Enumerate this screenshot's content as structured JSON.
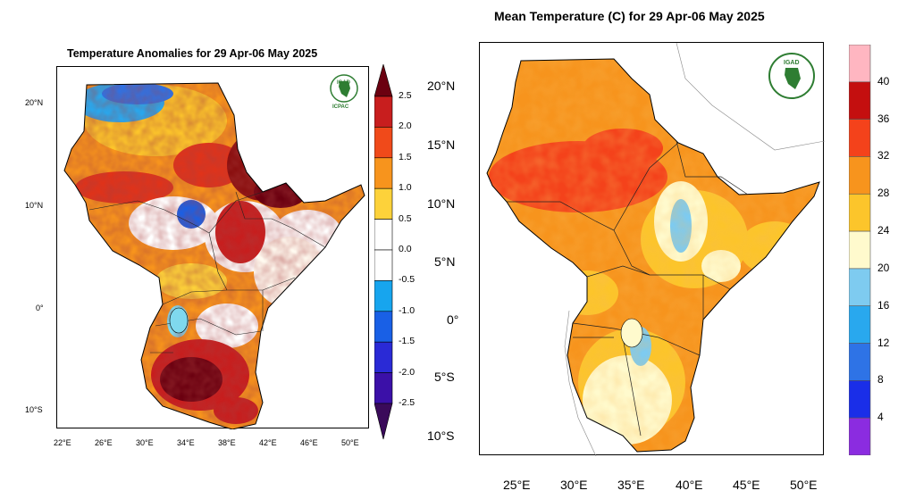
{
  "left_map": {
    "title": "Temperature Anomalies for 29 Apr-06 May 2025",
    "lat_labels": [
      "20°N",
      "10°N",
      "0°",
      "10°S"
    ],
    "lon_labels": [
      "22°E",
      "26°E",
      "30°E",
      "34°E",
      "38°E",
      "42°E",
      "46°E",
      "50°E"
    ],
    "logo_top": "IGAD",
    "logo_bottom": "ICPAC",
    "colorbar": {
      "labels": [
        "2.5",
        "2.0",
        "1.5",
        "1.0",
        "0.5",
        "0.0",
        "-0.5",
        "-1.0",
        "-1.5",
        "-2.0",
        "-2.5"
      ],
      "colors": [
        "#6b0010",
        "#c81e1e",
        "#f04a1a",
        "#f7941d",
        "#fdd23a",
        "#ffffff",
        "#ffffff",
        "#17a5ee",
        "#1960e6",
        "#2a2ad6",
        "#3b10a8",
        "#3a0a5a"
      ]
    }
  },
  "right_map": {
    "title": "Mean Temperature (C) for 29 Apr-06 May 2025",
    "lat_labels": [
      "20°N",
      "15°N",
      "10°N",
      "5°N",
      "0°",
      "5°S",
      "10°S"
    ],
    "lon_labels": [
      "25°E",
      "30°E",
      "35°E",
      "40°E",
      "45°E",
      "50°E"
    ],
    "logo_top": "IGAD",
    "colorbar": {
      "labels": [
        "40",
        "36",
        "32",
        "28",
        "24",
        "20",
        "16",
        "12",
        "8",
        "4"
      ],
      "colors": [
        "#ffb6c1",
        "#c40f0f",
        "#f4421b",
        "#f7941d",
        "#fcc52b",
        "#fffacd",
        "#7ecbf0",
        "#29a8ee",
        "#2e73e6",
        "#1a2ee8",
        "#8b2ce0"
      ]
    }
  }
}
